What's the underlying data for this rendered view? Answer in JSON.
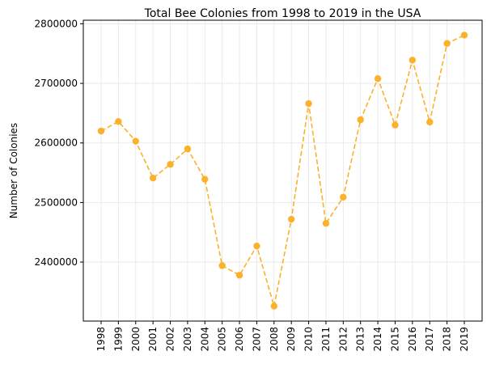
{
  "chart_data": {
    "type": "line",
    "title": "Total Bee Colonies from 1998 to 2019 in the USA",
    "xlabel": "",
    "ylabel": "Number of Colonies",
    "categories": [
      "1998",
      "1999",
      "2000",
      "2001",
      "2002",
      "2003",
      "2004",
      "2005",
      "2006",
      "2007",
      "2008",
      "2009",
      "2010",
      "2011",
      "2012",
      "2013",
      "2014",
      "2015",
      "2016",
      "2017",
      "2018",
      "2019"
    ],
    "series": [
      {
        "values": [
          2620000,
          2636000,
          2603000,
          2541000,
          2564000,
          2590000,
          2539000,
          2394000,
          2378000,
          2427000,
          2326000,
          2472000,
          2666000,
          2465000,
          2509000,
          2639000,
          2708000,
          2630000,
          2739000,
          2635000,
          2767000,
          2781000
        ],
        "color": "#FBB12A",
        "line_style": "dashed",
        "marker": "circle"
      }
    ],
    "ylim": [
      2301000,
      2806000
    ],
    "yticks": [
      2400000,
      2500000,
      2600000,
      2700000,
      2800000
    ],
    "grid": true
  }
}
